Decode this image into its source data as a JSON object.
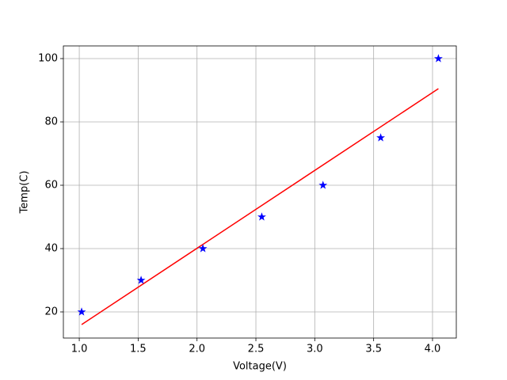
{
  "chart_data": {
    "type": "scatter",
    "xlabel": "Voltage(V)",
    "ylabel": "Temp(C)",
    "xlim": [
      0.865,
      4.202
    ],
    "ylim": [
      11.75,
      104
    ],
    "xticks": [
      {
        "value": 1.0,
        "label": "1.0"
      },
      {
        "value": 1.5,
        "label": "1.5"
      },
      {
        "value": 2.0,
        "label": "2.0"
      },
      {
        "value": 2.5,
        "label": "2.5"
      },
      {
        "value": 3.0,
        "label": "3.0"
      },
      {
        "value": 3.5,
        "label": "3.5"
      },
      {
        "value": 4.0,
        "label": "4.0"
      }
    ],
    "yticks": [
      20,
      40,
      60,
      80,
      100
    ],
    "grid": true,
    "series": [
      {
        "type": "scatter",
        "marker": "star",
        "color": "#0000ff",
        "x": [
          1.02,
          1.525,
          2.05,
          2.55,
          3.07,
          3.56,
          4.05
        ],
        "values": [
          20,
          30,
          40,
          50,
          60,
          75,
          100
        ]
      },
      {
        "type": "line",
        "color": "#ff0000",
        "x": [
          1.02,
          4.05
        ],
        "values": [
          16,
          90.5
        ]
      }
    ]
  }
}
